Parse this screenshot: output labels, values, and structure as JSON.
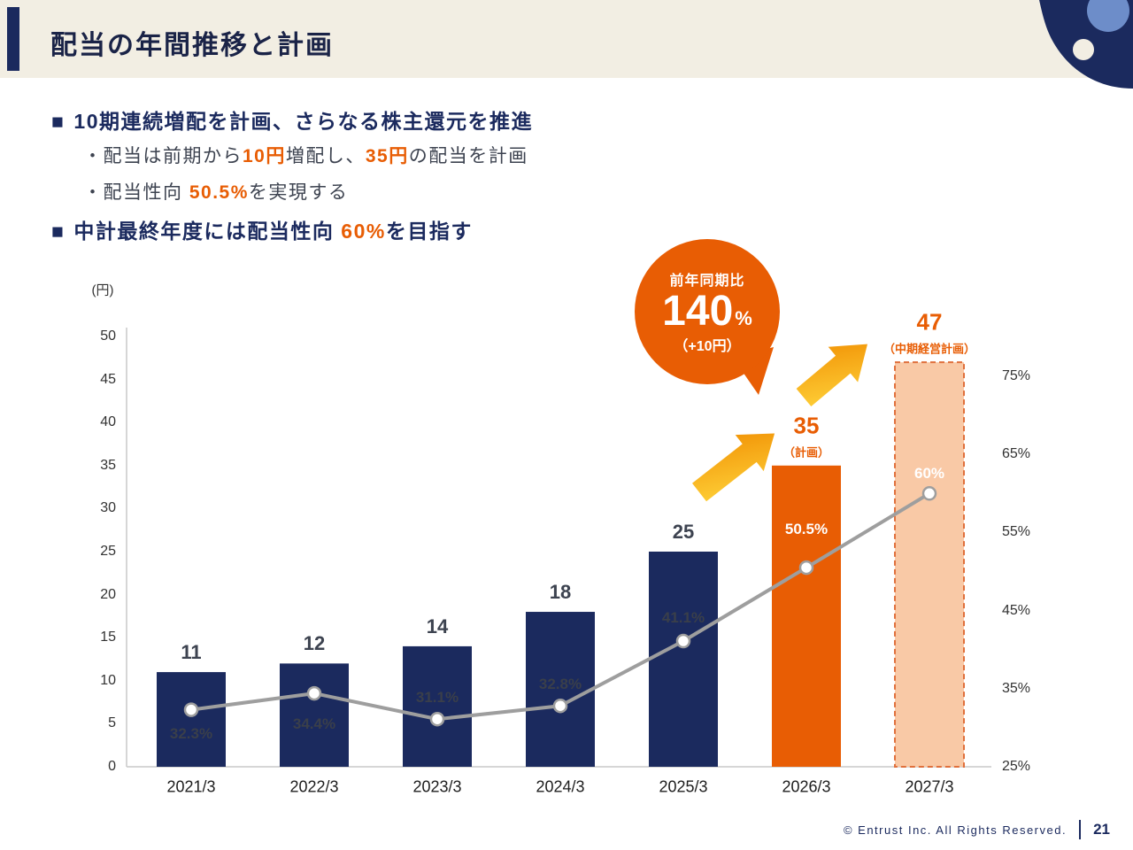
{
  "header": {
    "title": "配当の年間推移と計画"
  },
  "bullets": {
    "square": "■",
    "b1": "10期連続増配を計画、さらなる株主還元を推進",
    "b2_pre": "・配当は前期から",
    "b2_hl1": "10円",
    "b2_mid": "増配し、",
    "b2_hl2": "35円",
    "b2_post": "の配当を計画",
    "b3_pre": "・配当性向 ",
    "b3_hl": "50.5%",
    "b3_post": "を実現する",
    "b4_pre": "中計最終年度には配当性向 ",
    "b4_hl": "60%",
    "b4_post": "を目指す"
  },
  "callout": {
    "top": "前年同期比",
    "value": "140",
    "unit": "%",
    "sub": "（+10円）"
  },
  "chart_data": {
    "type": "bar+line",
    "categories": [
      "2021/3",
      "2022/3",
      "2023/3",
      "2024/3",
      "2025/3",
      "2026/3",
      "2027/3"
    ],
    "bar_series": {
      "values": [
        11,
        12,
        14,
        18,
        25,
        35,
        47
      ],
      "kinds": [
        "actual",
        "actual",
        "actual",
        "actual",
        "actual",
        "plan",
        "mid_term_plan"
      ],
      "sub_labels": [
        "",
        "",
        "",
        "",
        "",
        "（計画）",
        "（中期経営計画）"
      ]
    },
    "line_series": {
      "values": [
        32.3,
        34.4,
        31.1,
        32.8,
        41.1,
        50.5,
        60
      ],
      "labels": [
        "32.3%",
        "34.4%",
        "31.1%",
        "32.8%",
        "41.1%",
        "50.5%",
        "60%"
      ]
    },
    "left_axis": {
      "title": "(円)",
      "ticks": [
        0,
        5,
        10,
        15,
        20,
        25,
        30,
        35,
        40,
        45,
        50
      ],
      "range": [
        0,
        50
      ]
    },
    "right_axis": {
      "labels": [
        "25%",
        "35%",
        "45%",
        "55%",
        "65%",
        "75%"
      ],
      "values": [
        25,
        35,
        45,
        55,
        65,
        75
      ],
      "range": [
        25,
        75
      ]
    },
    "grid": false,
    "legend": "none"
  },
  "colors": {
    "navy": "#1b2a5e",
    "orange": "#e85d04",
    "peach": "#f9c9a6",
    "peach_border": "#e0703c",
    "line_gray": "#9e9e9e",
    "header_bg": "#f2eee3",
    "arrow_light": "#ffd43b",
    "arrow_deep": "#f08c00",
    "text_dark": "#3d4350"
  },
  "footer": {
    "copyright": "© Entrust Inc. All Rights Reserved.",
    "page": "21"
  }
}
